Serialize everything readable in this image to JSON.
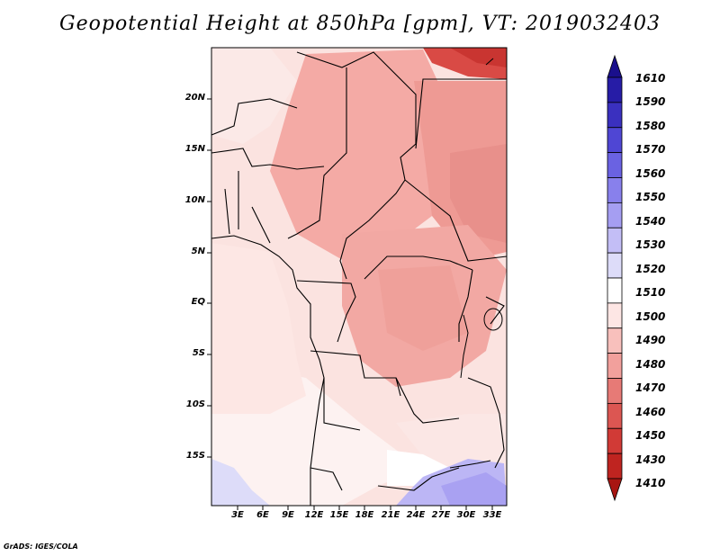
{
  "title": "Geopotential Height at 850hPa [gpm], VT: 2019032403",
  "credit": "GrADS: IGES/COLA",
  "lat_labels": [
    "20N",
    "15N",
    "10N",
    "5N",
    "EQ",
    "5S",
    "10S",
    "15S"
  ],
  "lon_labels": [
    "3E",
    "6E",
    "9E",
    "12E",
    "15E",
    "18E",
    "21E",
    "24E",
    "27E",
    "30E",
    "33E"
  ],
  "colorbar": {
    "labels": [
      "1610",
      "1590",
      "1580",
      "1570",
      "1560",
      "1550",
      "1540",
      "1530",
      "1520",
      "1510",
      "1500",
      "1490",
      "1480",
      "1470",
      "1460",
      "1450",
      "1430",
      "1410"
    ],
    "colors": [
      "#1a0f8c",
      "#261ca6",
      "#3a30bf",
      "#4f46d4",
      "#6a62e2",
      "#8880ec",
      "#a59ef2",
      "#c3bef6",
      "#dddcf9",
      "#ffffff",
      "#fde6e4",
      "#f8c0bc",
      "#f2a09c",
      "#e77a76",
      "#dc5652",
      "#d13a36",
      "#bf2420",
      "#a81612"
    ]
  },
  "map": {
    "lon_range": [
      0,
      35
    ],
    "lat_range": [
      -20,
      24.5
    ],
    "land_color": "#fbe0dd",
    "regions": [
      {
        "color": "#f5b3ad"
      },
      {
        "color": "#f0a39d"
      },
      {
        "color": "#e88d88"
      },
      {
        "color": "#f8c9c4"
      },
      {
        "color": "#dcd8f8"
      },
      {
        "color": "#d9443f"
      }
    ]
  }
}
